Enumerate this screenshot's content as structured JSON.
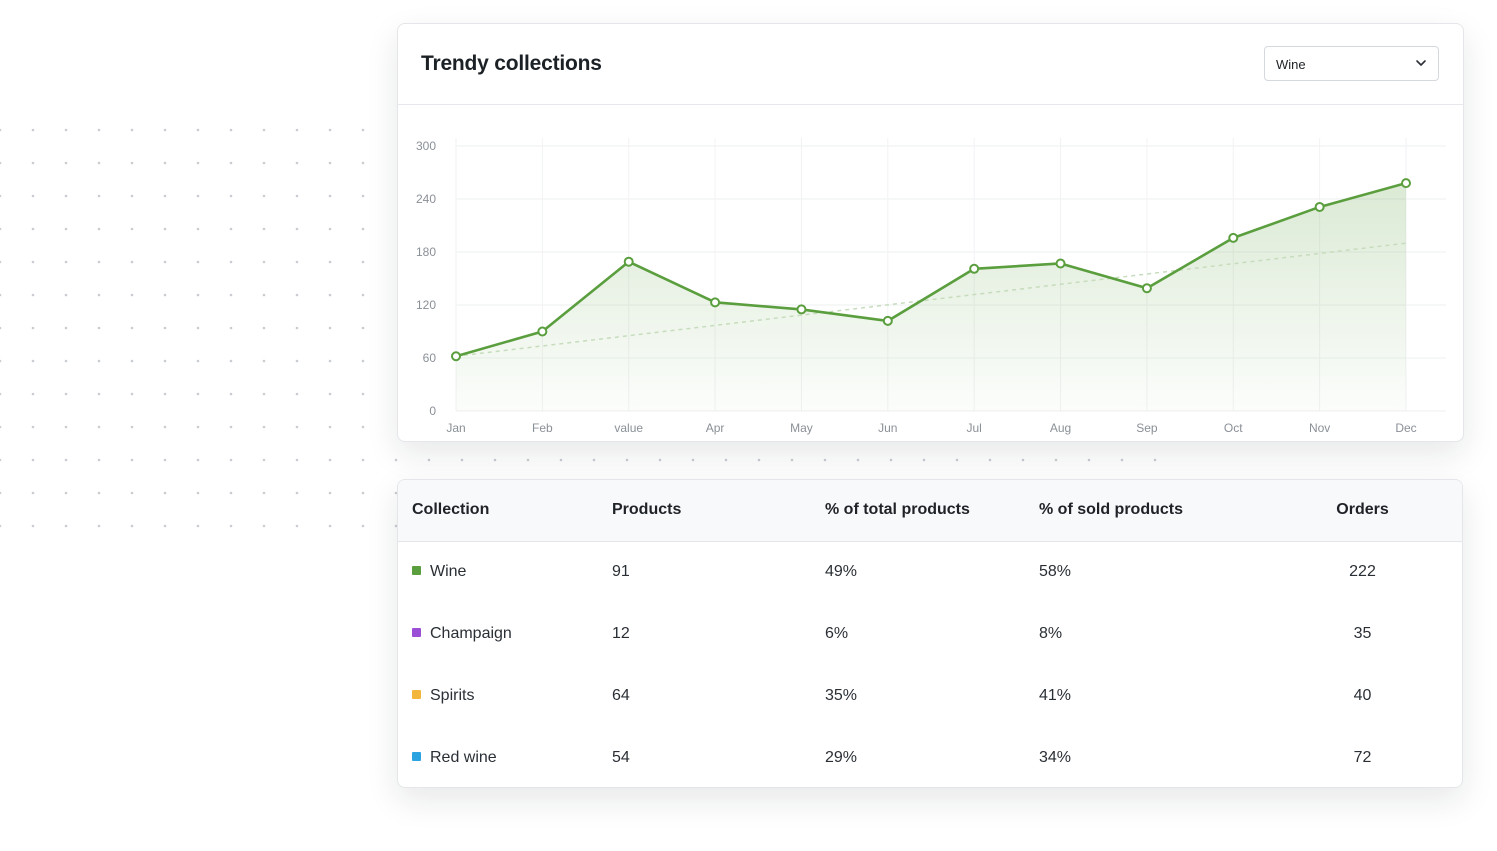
{
  "card": {
    "title": "Trendy collections",
    "select_value": "Wine"
  },
  "chart_data": {
    "type": "line",
    "categories": [
      "Jan",
      "Feb",
      "value",
      "Apr",
      "May",
      "Jun",
      "Jul",
      "Aug",
      "Sep",
      "Oct",
      "Nov",
      "Dec"
    ],
    "series": [
      {
        "values": [
          62,
          90,
          169,
          123,
          115,
          102,
          161,
          167,
          139,
          196,
          231,
          258
        ],
        "color": "#5a9e3e"
      }
    ],
    "trendline": [
      62,
      190
    ],
    "yticks": [
      0,
      60,
      120,
      180,
      240,
      300
    ],
    "ylim": [
      0,
      300
    ],
    "grid": true,
    "area_fill": true
  },
  "table": {
    "headers": [
      "Collection",
      "Products",
      "% of total products",
      "% of sold products",
      "Orders"
    ],
    "rows": [
      {
        "name": "Wine",
        "color": "#5a9e3e",
        "products": "91",
        "pct_total": "49%",
        "pct_sold": "58%",
        "orders": "222"
      },
      {
        "name": "Champaign",
        "color": "#9b4fd6",
        "products": "12",
        "pct_total": "6%",
        "pct_sold": "8%",
        "orders": "35"
      },
      {
        "name": "Spirits",
        "color": "#f2b63c",
        "products": "64",
        "pct_total": "35%",
        "pct_sold": "41%",
        "orders": "40"
      },
      {
        "name": "Red wine",
        "color": "#2aa3e0",
        "products": "54",
        "pct_total": "29%",
        "pct_sold": "34%",
        "orders": "72"
      }
    ]
  }
}
